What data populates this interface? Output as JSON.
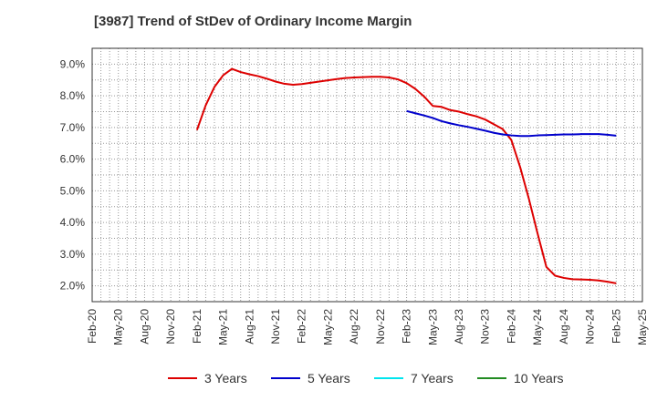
{
  "chart_data": {
    "type": "line",
    "title": "[3987]  Trend of StDev of Ordinary Income Margin",
    "xlabel": "",
    "ylabel": "",
    "x_tick_labels": [
      "Feb-20",
      "May-20",
      "Aug-20",
      "Nov-20",
      "Feb-21",
      "May-21",
      "Aug-21",
      "Nov-21",
      "Feb-22",
      "May-22",
      "Aug-22",
      "Nov-22",
      "Feb-23",
      "May-23",
      "Aug-23",
      "Nov-23",
      "Feb-24",
      "May-24",
      "Aug-24",
      "Nov-24",
      "Feb-25",
      "May-25"
    ],
    "y_tick_labels": [
      "2.0%",
      "3.0%",
      "4.0%",
      "5.0%",
      "6.0%",
      "7.0%",
      "8.0%",
      "9.0%"
    ],
    "y_ticks": [
      2.0,
      3.0,
      4.0,
      5.0,
      6.0,
      7.0,
      8.0,
      9.0
    ],
    "ylim": [
      1.5,
      9.5
    ],
    "grid": true,
    "legend_position": "bottom",
    "series": [
      {
        "name": "3 Years",
        "color": "#dd0000",
        "points": [
          {
            "x": "Feb-21",
            "y": 6.92
          },
          {
            "x": "Mar-21",
            "y": 7.7
          },
          {
            "x": "Apr-21",
            "y": 8.28
          },
          {
            "x": "May-21",
            "y": 8.65
          },
          {
            "x": "Jun-21",
            "y": 8.85
          },
          {
            "x": "Jul-21",
            "y": 8.75
          },
          {
            "x": "Aug-21",
            "y": 8.68
          },
          {
            "x": "Sep-21",
            "y": 8.62
          },
          {
            "x": "Oct-21",
            "y": 8.54
          },
          {
            "x": "Nov-21",
            "y": 8.45
          },
          {
            "x": "Dec-21",
            "y": 8.38
          },
          {
            "x": "Jan-22",
            "y": 8.35
          },
          {
            "x": "Feb-22",
            "y": 8.37
          },
          {
            "x": "Mar-22",
            "y": 8.41
          },
          {
            "x": "Apr-22",
            "y": 8.45
          },
          {
            "x": "May-22",
            "y": 8.49
          },
          {
            "x": "Jun-22",
            "y": 8.53
          },
          {
            "x": "Jul-22",
            "y": 8.56
          },
          {
            "x": "Aug-22",
            "y": 8.58
          },
          {
            "x": "Sep-22",
            "y": 8.59
          },
          {
            "x": "Oct-22",
            "y": 8.6
          },
          {
            "x": "Nov-22",
            "y": 8.6
          },
          {
            "x": "Dec-22",
            "y": 8.58
          },
          {
            "x": "Jan-23",
            "y": 8.52
          },
          {
            "x": "Feb-23",
            "y": 8.4
          },
          {
            "x": "Mar-23",
            "y": 8.22
          },
          {
            "x": "Apr-23",
            "y": 7.98
          },
          {
            "x": "May-23",
            "y": 7.68
          },
          {
            "x": "Jun-23",
            "y": 7.65
          },
          {
            "x": "Jul-23",
            "y": 7.55
          },
          {
            "x": "Aug-23",
            "y": 7.5
          },
          {
            "x": "Sep-23",
            "y": 7.42
          },
          {
            "x": "Oct-23",
            "y": 7.35
          },
          {
            "x": "Nov-23",
            "y": 7.25
          },
          {
            "x": "Dec-23",
            "y": 7.1
          },
          {
            "x": "Jan-24",
            "y": 6.95
          },
          {
            "x": "Feb-24",
            "y": 6.6
          },
          {
            "x": "Mar-24",
            "y": 5.75
          },
          {
            "x": "Apr-24",
            "y": 4.75
          },
          {
            "x": "May-24",
            "y": 3.65
          },
          {
            "x": "Jun-24",
            "y": 2.6
          },
          {
            "x": "Jul-24",
            "y": 2.32
          },
          {
            "x": "Aug-24",
            "y": 2.25
          },
          {
            "x": "Sep-24",
            "y": 2.21
          },
          {
            "x": "Oct-24",
            "y": 2.2
          },
          {
            "x": "Nov-24",
            "y": 2.19
          },
          {
            "x": "Dec-24",
            "y": 2.17
          },
          {
            "x": "Jan-25",
            "y": 2.13
          },
          {
            "x": "Feb-25",
            "y": 2.08
          }
        ]
      },
      {
        "name": "5 Years",
        "color": "#0000cc",
        "points": [
          {
            "x": "Feb-23",
            "y": 7.52
          },
          {
            "x": "Mar-23",
            "y": 7.45
          },
          {
            "x": "Apr-23",
            "y": 7.38
          },
          {
            "x": "May-23",
            "y": 7.3
          },
          {
            "x": "Jun-23",
            "y": 7.2
          },
          {
            "x": "Jul-23",
            "y": 7.13
          },
          {
            "x": "Aug-23",
            "y": 7.07
          },
          {
            "x": "Sep-23",
            "y": 7.02
          },
          {
            "x": "Oct-23",
            "y": 6.96
          },
          {
            "x": "Nov-23",
            "y": 6.9
          },
          {
            "x": "Dec-23",
            "y": 6.83
          },
          {
            "x": "Jan-24",
            "y": 6.78
          },
          {
            "x": "Feb-24",
            "y": 6.75
          },
          {
            "x": "Mar-24",
            "y": 6.73
          },
          {
            "x": "Apr-24",
            "y": 6.73
          },
          {
            "x": "May-24",
            "y": 6.75
          },
          {
            "x": "Jun-24",
            "y": 6.76
          },
          {
            "x": "Jul-24",
            "y": 6.77
          },
          {
            "x": "Aug-24",
            "y": 6.78
          },
          {
            "x": "Sep-24",
            "y": 6.78
          },
          {
            "x": "Oct-24",
            "y": 6.79
          },
          {
            "x": "Nov-24",
            "y": 6.79
          },
          {
            "x": "Dec-24",
            "y": 6.79
          },
          {
            "x": "Jan-25",
            "y": 6.77
          },
          {
            "x": "Feb-25",
            "y": 6.74
          }
        ]
      },
      {
        "name": "7 Years",
        "color": "#00e5ee",
        "points": []
      },
      {
        "name": "10 Years",
        "color": "#228b22",
        "points": []
      }
    ]
  }
}
